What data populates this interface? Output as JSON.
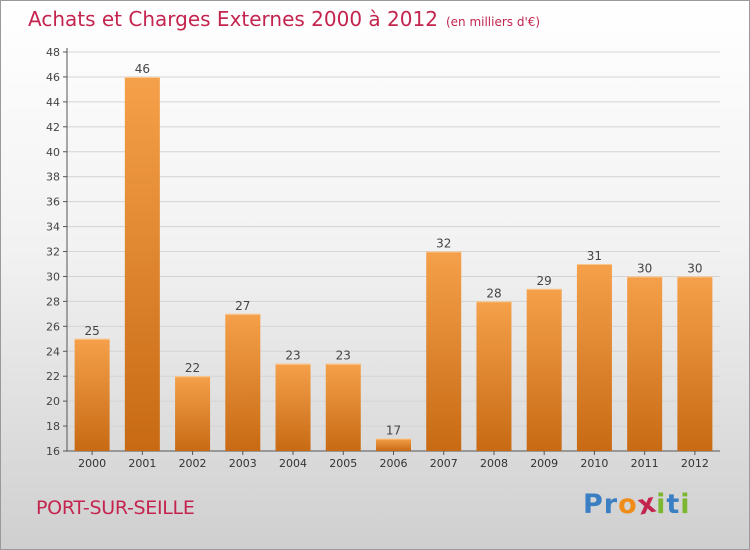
{
  "title": "Achats et Charges Externes 2000 à 2012",
  "unit": "(en milliers d'€)",
  "commune": "PORT-SUR-SEILLE",
  "logo": {
    "text": "Proxiti",
    "letters": [
      {
        "ch": "P",
        "color": "#3a7fc4"
      },
      {
        "ch": "r",
        "color": "#3a7fc4"
      },
      {
        "ch": "o",
        "color": "#f08c1a"
      },
      {
        "ch": "x",
        "color": "#c4254f"
      },
      {
        "ch": "i",
        "color": "#7cb82f"
      },
      {
        "ch": "t",
        "color": "#3a7fc4"
      },
      {
        "ch": "i",
        "color": "#7cb82f"
      }
    ]
  },
  "colors": {
    "bar_light": "#f5a04a",
    "bar_dark": "#c86a14",
    "title": "#c4254f"
  },
  "chart_data": {
    "type": "bar",
    "categories": [
      "2000",
      "2001",
      "2002",
      "2003",
      "2004",
      "2005",
      "2006",
      "2007",
      "2008",
      "2009",
      "2010",
      "2011",
      "2012"
    ],
    "values": [
      25,
      46,
      22,
      27,
      23,
      23,
      17,
      32,
      28,
      29,
      31,
      30,
      30
    ],
    "ylim": [
      16,
      48
    ],
    "yticks": [
      16,
      18,
      20,
      22,
      24,
      26,
      28,
      30,
      32,
      34,
      36,
      38,
      40,
      42,
      44,
      46,
      48
    ],
    "grid": true,
    "legend": "none"
  }
}
